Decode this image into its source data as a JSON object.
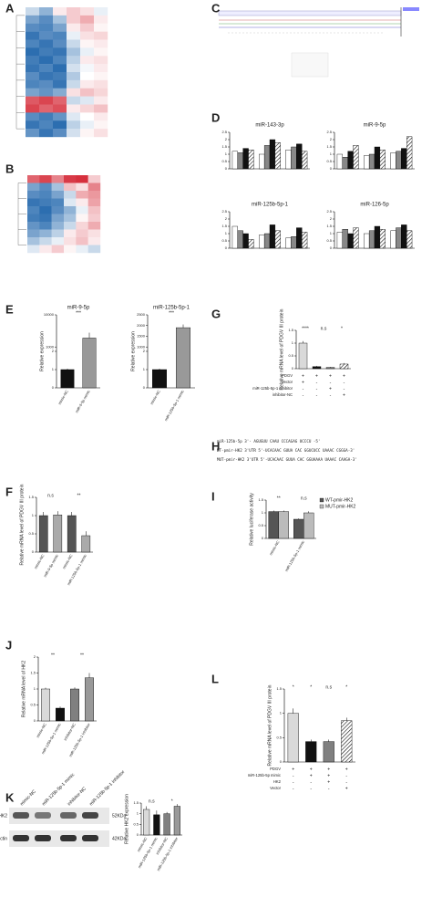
{
  "panels": [
    "A",
    "B",
    "C",
    "D",
    "E",
    "F",
    "G",
    "H",
    "I",
    "J",
    "K",
    "L"
  ],
  "sequence_H": [
    "miR-125b-5p        3'- AGUGUU  CAAU  CCCAGAG  UCCCU -5'",
    "WT-pmir-HK2 3'UTR  5'-UCACAAC GUUA CAC GGUCUCC UAAAC CGGGA-3'",
    "MUT-pmir-HK2 3'UTR 5'-UCACAAC GUUA CAC GGUAAAA UAAAC CAAGA-3'"
  ],
  "blot_K": {
    "lanes": [
      "mimic-NC",
      "miR-125b-5p-1 mimic",
      "inhibitor-NC",
      "miR-125b-5p-1 inhibitor"
    ],
    "rows": [
      "HK2",
      "β-actin"
    ],
    "sizes": [
      "52KDa",
      "42KDa"
    ]
  },
  "chart_data": [
    {
      "type": "heatmap",
      "lim": [
        -2,
        2
      ],
      "values": [
        [
          -0.5,
          -1,
          0.2,
          0.5,
          0.3,
          -0.2
        ],
        [
          -1.2,
          -1.5,
          -0.8,
          0.5,
          0.8,
          0.2
        ],
        [
          -1.5,
          -1.6,
          -1.2,
          0.2,
          0.5,
          0.1
        ],
        [
          -1.8,
          -1.5,
          -1.6,
          -0.2,
          0.3,
          0.4
        ],
        [
          -1.6,
          -1.8,
          -1.5,
          -0.5,
          0.1,
          0.2
        ],
        [
          -1.9,
          -1.7,
          -1.8,
          -0.8,
          -0.2,
          0.1
        ],
        [
          -1.7,
          -1.9,
          -1.6,
          -0.6,
          0.2,
          0.3
        ],
        [
          -1.8,
          -1.6,
          -1.9,
          -0.4,
          -0.1,
          0.2
        ],
        [
          -1.5,
          -1.8,
          -1.7,
          -0.7,
          0.0,
          0.1
        ],
        [
          -1.6,
          -1.5,
          -1.8,
          -0.5,
          0.2,
          0.3
        ],
        [
          -1.2,
          -1.4,
          -1.1,
          0.3,
          0.6,
          0.4
        ],
        [
          1.6,
          1.8,
          1.5,
          -0.5,
          -0.3,
          0.2
        ],
        [
          1.8,
          1.5,
          1.7,
          0.2,
          0.4,
          0.6
        ],
        [
          -1.5,
          -1.7,
          -1.4,
          -0.3,
          0.0,
          0.2
        ],
        [
          -1.8,
          -1.6,
          -1.9,
          -0.6,
          -0.2,
          0.1
        ],
        [
          -1.4,
          -1.8,
          -1.5,
          -0.4,
          0.1,
          0.3
        ]
      ]
    },
    {
      "type": "heatmap",
      "lim": [
        -2,
        2
      ],
      "values": [
        [
          1.5,
          1.8,
          1.2,
          1.9,
          2.0,
          0.5
        ],
        [
          -1.2,
          -1.5,
          -0.8,
          0.6,
          0.3,
          1.2
        ],
        [
          -1.5,
          -1.6,
          -1.2,
          -0.5,
          0.8,
          1.0
        ],
        [
          -1.8,
          -1.7,
          -1.6,
          -0.3,
          0.2,
          0.9
        ],
        [
          -1.6,
          -1.9,
          -1.5,
          -1.0,
          -0.2,
          0.6
        ],
        [
          -1.7,
          -1.8,
          -1.2,
          -0.8,
          0.1,
          0.5
        ],
        [
          -1.4,
          -1.6,
          -1.0,
          -0.5,
          0.4,
          0.8
        ],
        [
          -1.2,
          -1.0,
          -0.6,
          0.2,
          0.5,
          0.3
        ],
        [
          -0.8,
          -0.5,
          -0.2,
          0.3,
          0.6,
          0.2
        ],
        [
          -0.3,
          0.2,
          0.5,
          0.1,
          -0.2,
          -0.5
        ]
      ]
    },
    {
      "type": "bar",
      "title": "miR-143-3p",
      "categories": [
        null,
        null,
        null
      ],
      "ylim": [
        0,
        2.5
      ],
      "yticks": [
        0,
        0.5,
        1.0,
        1.5,
        2.0,
        2.5
      ],
      "series": [
        {
          "color": "#ffffff",
          "pattern": "solid",
          "values": [
            1.2,
            1.0,
            1.3
          ]
        },
        {
          "color": "#888888",
          "pattern": "solid",
          "values": [
            1.1,
            1.6,
            1.5
          ]
        },
        {
          "color": "#111111",
          "pattern": "solid",
          "values": [
            1.4,
            2.0,
            1.7
          ]
        },
        {
          "color": "#ffffff",
          "pattern": "hatch",
          "values": [
            1.3,
            1.8,
            1.2
          ]
        }
      ]
    },
    {
      "type": "bar",
      "title": "miR-9-5p",
      "categories": [
        null,
        null,
        null
      ],
      "ylim": [
        0,
        2.5
      ],
      "yticks": [
        0,
        0.5,
        1.0,
        1.5,
        2.0,
        2.5
      ],
      "series": [
        {
          "color": "#ffffff",
          "pattern": "solid",
          "values": [
            1.0,
            0.9,
            1.1
          ]
        },
        {
          "color": "#888888",
          "pattern": "solid",
          "values": [
            0.8,
            1.0,
            1.2
          ]
        },
        {
          "color": "#111111",
          "pattern": "solid",
          "values": [
            1.2,
            1.5,
            1.4
          ]
        },
        {
          "color": "#ffffff",
          "pattern": "hatch",
          "values": [
            1.6,
            1.3,
            2.2
          ]
        }
      ]
    },
    {
      "type": "bar",
      "title": "miR-125b-5p-1",
      "categories": [
        null,
        null,
        null
      ],
      "ylim": [
        0,
        2.5
      ],
      "yticks": [
        0,
        0.5,
        1.0,
        1.5,
        2.0,
        2.5
      ],
      "series": [
        {
          "color": "#ffffff",
          "pattern": "solid",
          "values": [
            1.5,
            0.9,
            0.7
          ]
        },
        {
          "color": "#888888",
          "pattern": "solid",
          "values": [
            1.2,
            1.0,
            0.8
          ]
        },
        {
          "color": "#111111",
          "pattern": "solid",
          "values": [
            1.0,
            1.6,
            1.4
          ]
        },
        {
          "color": "#ffffff",
          "pattern": "hatch",
          "values": [
            0.6,
            1.2,
            1.1
          ]
        }
      ]
    },
    {
      "type": "bar",
      "title": "miR-126-5p",
      "categories": [
        null,
        null,
        null
      ],
      "ylim": [
        0,
        2.5
      ],
      "yticks": [
        0,
        0.5,
        1.0,
        1.5,
        2.0,
        2.5
      ],
      "series": [
        {
          "color": "#ffffff",
          "pattern": "solid",
          "values": [
            1.1,
            1.0,
            1.2
          ]
        },
        {
          "color": "#888888",
          "pattern": "solid",
          "values": [
            1.3,
            1.2,
            1.4
          ]
        },
        {
          "color": "#111111",
          "pattern": "solid",
          "values": [
            1.0,
            1.5,
            1.6
          ]
        },
        {
          "color": "#ffffff",
          "pattern": "hatch",
          "values": [
            1.4,
            1.3,
            1.2
          ]
        }
      ]
    },
    {
      "type": "bar",
      "title": "miR-9-5p",
      "ylabel": "Relative expression",
      "categories": [
        "mimic-NC",
        "miR-9-5p mimic"
      ],
      "values": [
        1.0,
        3500
      ],
      "errors": [
        0.05,
        1500
      ],
      "colors": [
        "#111111",
        "#999999"
      ],
      "patterns": [
        "solid",
        "solid"
      ],
      "ylim": [
        0,
        10000
      ],
      "ybreak": [
        2,
        1000
      ],
      "yticks": [
        0,
        1,
        2,
        1000,
        10000
      ],
      "annotations": [
        "***"
      ]
    },
    {
      "type": "bar",
      "title": "miR-125b-5p-1",
      "ylabel": "Relative expression",
      "categories": [
        "mimic-NC",
        "miR-125b-5p-1 mimic"
      ],
      "values": [
        1.0,
        1900
      ],
      "errors": [
        0.05,
        150
      ],
      "colors": [
        "#111111",
        "#999999"
      ],
      "patterns": [
        "solid",
        "solid"
      ],
      "ylim": [
        0,
        2500
      ],
      "ybreak": [
        2,
        1000
      ],
      "yticks": [
        0,
        1,
        2,
        1000,
        1500,
        2000,
        2500
      ],
      "annotations": [
        "***"
      ]
    },
    {
      "type": "bar",
      "ylabel": "Relative mRNA level of PDGV III protein",
      "categories": [
        "mimic-NC",
        "miR-9-5p mimic",
        "mimic-NC",
        "miR-125b-5p-1 mimic"
      ],
      "values": [
        1.0,
        1.02,
        1.0,
        0.45
      ],
      "errors": [
        0.1,
        0.1,
        0.1,
        0.12
      ],
      "colors": [
        "#555555",
        "#aaaaaa",
        "#555555",
        "#aaaaaa"
      ],
      "patterns": [
        "solid",
        "solid",
        "solid",
        "solid"
      ],
      "ylim": [
        0,
        1.5
      ],
      "yticks": [
        0,
        0.5,
        1.0,
        1.5
      ],
      "annotations": [
        "n.s",
        "**"
      ]
    },
    {
      "type": "bar",
      "ylabel": "Relative mRNA level of PDGV III protein",
      "values": [
        1.0,
        0.08,
        0.05,
        0.18
      ],
      "errors": [
        0.08,
        0.03,
        0.02,
        0.04
      ],
      "colors": [
        "#d9d9d9",
        "#111111",
        "#808080",
        "#ffffff"
      ],
      "patterns": [
        "solid",
        "solid",
        "solid",
        "hatch"
      ],
      "ylim": [
        0,
        1.5
      ],
      "yticks": [
        0,
        0.5,
        1.0,
        1.5
      ],
      "annotations": [
        "****",
        "n.s",
        "*"
      ],
      "table": [
        {
          "label": "PDGV",
          "cells": [
            "+",
            "+",
            "+",
            "+"
          ]
        },
        {
          "label": "Vector",
          "cells": [
            "+",
            "-",
            "-",
            "-"
          ]
        },
        {
          "label": "miR-125b-5p-1 inhibitor",
          "cells": [
            "-",
            "-",
            "+",
            "-"
          ]
        },
        {
          "label": "inhibitor-NC",
          "cells": [
            "-",
            "-",
            "-",
            "+"
          ]
        }
      ]
    },
    {
      "type": "bar",
      "ylabel": "Relative luciferase activity",
      "categories": [
        "mimic-NC",
        "miR-125b-5p-1 mimic"
      ],
      "ylim": [
        0,
        1.5
      ],
      "yticks": [
        0,
        0.5,
        1.0,
        1.5
      ],
      "annotations": [
        "**",
        "n.s"
      ],
      "series": [
        {
          "name": "WT-pmir-HK2",
          "color": "#555555",
          "pattern": "solid",
          "values": [
            1.05,
            0.75
          ],
          "errors": [
            0.04,
            0.03
          ]
        },
        {
          "name": "MUT-pmir-HK2",
          "color": "#bbbbbb",
          "pattern": "solid",
          "values": [
            1.05,
            1.0
          ],
          "errors": [
            0.04,
            0.06
          ]
        }
      ]
    },
    {
      "type": "bar",
      "ylabel": "Relative mRNA level of HK2",
      "categories": [
        "mimic-NC",
        "miR-125b-5p-1 mimic",
        "inhibitor-NC",
        "miR-125b-5p-1 inhibitor"
      ],
      "values": [
        1.0,
        0.4,
        1.0,
        1.35
      ],
      "errors": [
        0.04,
        0.05,
        0.05,
        0.15
      ],
      "colors": [
        "#d9d9d9",
        "#111111",
        "#808080",
        "#999999"
      ],
      "patterns": [
        "solid",
        "solid",
        "solid",
        "solid"
      ],
      "ylim": [
        0,
        2.0
      ],
      "yticks": [
        0,
        0.5,
        1.0,
        1.5,
        2.0
      ],
      "annotations": [
        "**",
        "**"
      ]
    },
    {
      "type": "bar",
      "ylabel": "Relative HK2 expression",
      "categories": [
        "mimic-NC",
        "miR-125b-5p-1 mimic",
        "inhibitor-NC",
        "miR-125b-5p-1 inhibitor"
      ],
      "values": [
        1.2,
        0.95,
        1.0,
        1.35
      ],
      "errors": [
        0.15,
        0.2,
        0.08,
        0.1
      ],
      "colors": [
        "#d9d9d9",
        "#111111",
        "#808080",
        "#999999"
      ],
      "patterns": [
        "solid",
        "solid",
        "solid",
        "solid"
      ],
      "ylim": [
        0,
        1.5
      ],
      "yticks": [
        0,
        0.5,
        1.0,
        1.5
      ],
      "annotations": [
        "n.s",
        "*"
      ]
    },
    {
      "type": "bar",
      "ylabel": "Relative mRNA level of PDGV III protein",
      "values": [
        1.0,
        0.42,
        0.42,
        0.85
      ],
      "errors": [
        0.1,
        0.04,
        0.04,
        0.06
      ],
      "colors": [
        "#d9d9d9",
        "#111111",
        "#808080",
        "#ffffff"
      ],
      "patterns": [
        "solid",
        "solid",
        "solid",
        "hatch"
      ],
      "ylim": [
        0,
        1.5
      ],
      "yticks": [
        0,
        0.5,
        1.0,
        1.5
      ],
      "annotations": [
        "*",
        "*",
        "n.s",
        "*"
      ],
      "table": [
        {
          "label": "PDGV",
          "cells": [
            "+",
            "+",
            "+",
            "+"
          ]
        },
        {
          "label": "miR-125b-5p mimic",
          "cells": [
            "-",
            "+",
            "+",
            "-"
          ]
        },
        {
          "label": "HK2",
          "cells": [
            "-",
            "-",
            "+",
            "-"
          ]
        },
        {
          "label": "Vector",
          "cells": [
            "-",
            "-",
            "-",
            "+"
          ]
        }
      ]
    }
  ]
}
